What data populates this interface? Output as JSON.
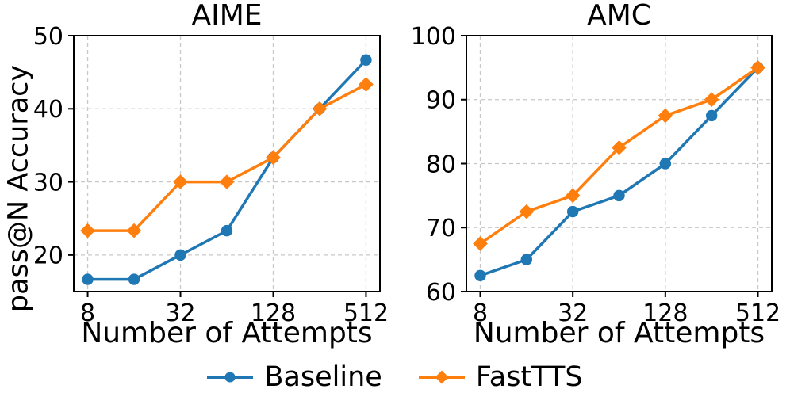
{
  "figure": {
    "background": "#ffffff",
    "text_color": "#000000",
    "grid_color": "#c8c8c8",
    "ylabel": "pass@N Accuracy",
    "legend_position": "bottom-center",
    "legend": [
      {
        "label": "Baseline",
        "color": "#1f77b4",
        "marker": "circle"
      },
      {
        "label": "FastTTS",
        "color": "#ff7f0e",
        "marker": "diamond"
      }
    ]
  },
  "chart_data": [
    {
      "type": "line",
      "title": "AIME",
      "xlabel": "Number of Attempts",
      "ylabel": "pass@N Accuracy",
      "xscale": "log2",
      "x": [
        8,
        16,
        32,
        64,
        128,
        256,
        512
      ],
      "xticks": [
        8,
        32,
        128,
        512
      ],
      "ylim": [
        15,
        50
      ],
      "yticks": [
        20,
        30,
        40,
        50
      ],
      "grid": "dashed",
      "series": [
        {
          "name": "Baseline",
          "color": "#1f77b4",
          "marker": "circle",
          "values": [
            16.67,
            16.67,
            20.0,
            23.33,
            33.33,
            40.0,
            46.67
          ]
        },
        {
          "name": "FastTTS",
          "color": "#ff7f0e",
          "marker": "diamond",
          "values": [
            23.33,
            23.33,
            30.0,
            30.0,
            33.33,
            40.0,
            43.33
          ]
        }
      ]
    },
    {
      "type": "line",
      "title": "AMC",
      "xlabel": "Number of Attempts",
      "ylabel": "",
      "xscale": "log2",
      "x": [
        8,
        16,
        32,
        64,
        128,
        256,
        512
      ],
      "xticks": [
        8,
        32,
        128,
        512
      ],
      "ylim": [
        60,
        100
      ],
      "yticks": [
        60,
        70,
        80,
        90,
        100
      ],
      "grid": "dashed",
      "series": [
        {
          "name": "Baseline",
          "color": "#1f77b4",
          "marker": "circle",
          "values": [
            62.5,
            65.0,
            72.5,
            75.0,
            80.0,
            87.5,
            95.0
          ]
        },
        {
          "name": "FastTTS",
          "color": "#ff7f0e",
          "marker": "diamond",
          "values": [
            67.5,
            72.5,
            75.0,
            82.5,
            87.5,
            90.0,
            95.0
          ]
        }
      ]
    }
  ]
}
